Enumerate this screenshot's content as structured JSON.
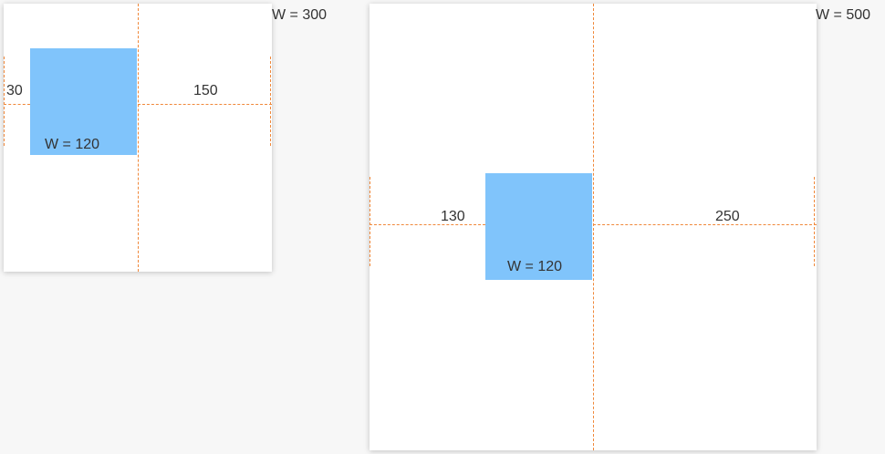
{
  "colors": {
    "background": "#f7f7f7",
    "canvas": "#ffffff",
    "box": "#80c4fb",
    "guide": "#f0883a",
    "text": "#333333"
  },
  "panels": [
    {
      "width_label": "W = 300",
      "box_label": "W = 120",
      "left_gap": "30",
      "right_gap": "150"
    },
    {
      "width_label": "W = 500",
      "box_label": "W = 120",
      "left_gap": "130",
      "right_gap": "250"
    }
  ]
}
